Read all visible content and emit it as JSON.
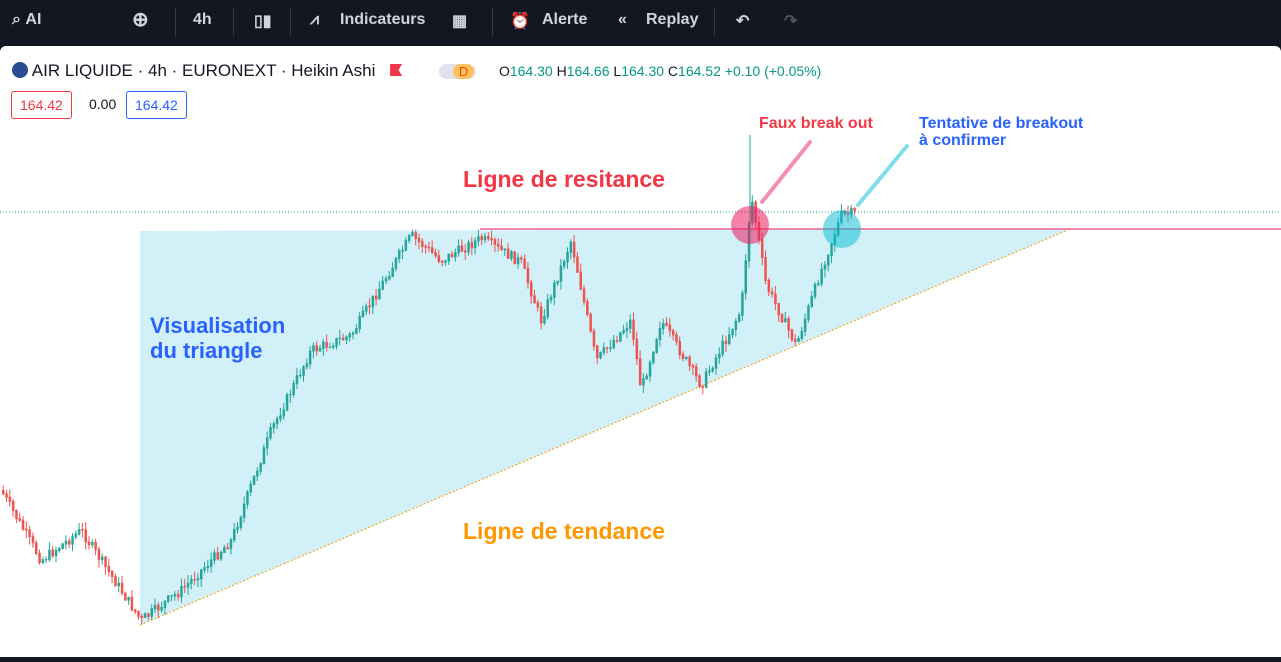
{
  "toolbar": {
    "symbol": "AI",
    "interval": "4h",
    "indicators": "Indicateurs",
    "alert": "Alerte",
    "replay": "Replay"
  },
  "legend": {
    "title": "AIR LIQUIDE · 4h · EURONEXT · Heikin Ashi",
    "badge": "D",
    "open_label": "O",
    "open": "164.30",
    "high_label": "H",
    "high": "164.66",
    "low_label": "L",
    "low": "164.30",
    "close_label": "C",
    "close": "164.52",
    "change": "+0.10 (+0.05%)"
  },
  "price_boxes": {
    "bid": "164.42",
    "spread": "0.00",
    "ask": "164.42"
  },
  "annotations": {
    "fake_breakout": "Faux break out",
    "breakout_line1": "Tentative de breakout",
    "breakout_line2": "à confirmer",
    "resistance": "Ligne de resitance",
    "triangle_line1": "Visualisation",
    "triangle_line2": "du triangle",
    "trend": "Ligne de tendance"
  }
}
